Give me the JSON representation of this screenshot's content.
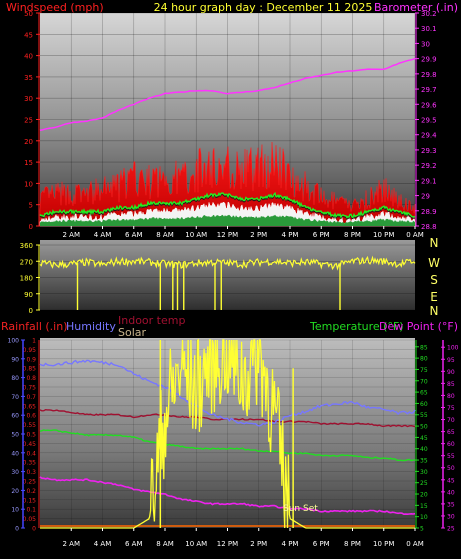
{
  "header": {
    "wind_label": "Windspeed (mph)",
    "title": "24 hour graph day : December 11 2025",
    "baro_label": "Barometer (.in)"
  },
  "colors": {
    "wind": "#ff1010",
    "gust": "#ffffff",
    "baro": "#ff33ff",
    "winddir": "#ffff33",
    "rain": "#3333ff",
    "humidity": "#7777ff",
    "indoor": "#a01030",
    "solar": "#c8b48c",
    "temp": "#22dd22",
    "dew": "#ee22ee",
    "rainscale": "#ee2222",
    "rainline": "#ff6600"
  },
  "chart_data": [
    {
      "type": "area",
      "name": "wind-barometer",
      "x_ticks": [
        "2 AM",
        "4 AM",
        "6 AM",
        "8 AM",
        "10 AM",
        "12 PM",
        "2 PM",
        "4 PM",
        "6 PM",
        "8 PM",
        "10 PM",
        "0 AM"
      ],
      "y_left_ticks": [
        "0",
        "5",
        "10",
        "15",
        "20",
        "25",
        "30",
        "35",
        "40",
        "45",
        "50"
      ],
      "y_left_range": [
        0,
        50
      ],
      "y_right_ticks": [
        "28.8",
        "28.9",
        "29",
        "29.1",
        "29.2",
        "29.3",
        "29.4",
        "29.5",
        "29.6",
        "29.7",
        "29.8",
        "29.9",
        "30",
        "30.1",
        "30.2"
      ],
      "y_right_range": [
        28.8,
        30.2
      ],
      "hours": [
        0,
        1,
        2,
        3,
        4,
        5,
        6,
        7,
        8,
        9,
        10,
        11,
        12,
        13,
        14,
        15,
        16,
        17,
        18,
        19,
        20,
        21,
        22,
        23,
        24
      ],
      "windspeed_peak": [
        7,
        8,
        8,
        8,
        9,
        10,
        12,
        11,
        12,
        12,
        14,
        15,
        15,
        14,
        15,
        16,
        13,
        10,
        7,
        6,
        5,
        7,
        9,
        7,
        4
      ],
      "windspeed_avg": [
        2,
        3,
        3,
        3,
        3,
        4,
        4,
        5,
        5,
        5,
        6,
        7,
        7,
        6,
        6,
        7,
        6,
        4,
        3,
        2,
        2,
        3,
        4,
        3,
        2
      ],
      "barometer": [
        29.43,
        29.45,
        29.48,
        29.49,
        29.51,
        29.56,
        29.6,
        29.64,
        29.67,
        29.68,
        29.69,
        29.69,
        29.67,
        29.68,
        29.69,
        29.71,
        29.74,
        29.77,
        29.79,
        29.81,
        29.82,
        29.83,
        29.83,
        29.87,
        29.9
      ]
    },
    {
      "type": "line",
      "name": "wind-direction",
      "y_ticks": [
        "0",
        "90",
        "180",
        "270",
        "360"
      ],
      "y_range": [
        0,
        360
      ],
      "compass_labels": [
        "N",
        "W",
        "S",
        "E",
        "N"
      ],
      "hours": [
        0,
        1,
        2,
        3,
        4,
        5,
        6,
        7,
        8,
        9,
        10,
        11,
        12,
        13,
        14,
        15,
        16,
        17,
        18,
        19,
        20,
        21,
        22,
        23,
        24
      ],
      "direction": [
        260,
        250,
        255,
        265,
        250,
        270,
        270,
        265,
        255,
        250,
        260,
        265,
        260,
        255,
        265,
        270,
        260,
        265,
        255,
        245,
        270,
        275,
        270,
        255,
        270
      ]
    },
    {
      "type": "line",
      "name": "rain-humidity-temperature",
      "legend": {
        "rainfall": "Rainfall (.in)",
        "humidity": "Humidity",
        "indoor": "Indoor temp",
        "solar": "Solar",
        "temperature": "Temperature (°F)",
        "dewpoint": "Dew Point (°F)"
      },
      "annotation": "Sun Set",
      "x_ticks": [
        "2 AM",
        "4 AM",
        "6 AM",
        "8 AM",
        "10 AM",
        "12 PM",
        "2 PM",
        "4 PM",
        "6 PM",
        "8 PM",
        "10 PM",
        "0 AM"
      ],
      "rain_ticks": [
        "0",
        "0.05",
        "0.1",
        "0.15",
        "0.2",
        "0.25",
        "0.3",
        "0.35",
        "0.4",
        "0.45",
        "0.5",
        "0.55",
        "0.6",
        "0.65",
        "0.7",
        "0.75",
        "0.8",
        "0.85",
        "0.9",
        "0.95",
        "1"
      ],
      "rain_range": [
        0,
        1
      ],
      "humidity_ticks": [
        "0",
        "10",
        "20",
        "30",
        "40",
        "50",
        "60",
        "70",
        "80",
        "90",
        "100"
      ],
      "humidity_range": [
        0,
        100
      ],
      "temp_ticks": [
        "5",
        "10",
        "15",
        "20",
        "25",
        "30",
        "35",
        "40",
        "45",
        "50",
        "55",
        "60",
        "65",
        "70",
        "75",
        "80",
        "85"
      ],
      "temp_range": [
        5,
        88
      ],
      "dew_ticks": [
        "25",
        "30",
        "35",
        "40",
        "45",
        "50",
        "55",
        "60",
        "65",
        "70",
        "75",
        "80",
        "85",
        "90",
        "95",
        "100"
      ],
      "dew_range": [
        25,
        103
      ],
      "hours": [
        0,
        1,
        2,
        3,
        4,
        5,
        6,
        7,
        8,
        9,
        10,
        11,
        12,
        13,
        14,
        15,
        16,
        17,
        18,
        19,
        20,
        21,
        22,
        23,
        24
      ],
      "humidity": [
        87,
        87,
        88,
        89,
        88,
        87,
        82,
        78,
        75,
        70,
        65,
        60,
        58,
        56,
        55,
        56,
        60,
        62,
        65,
        66,
        67,
        64,
        63,
        61,
        62
      ],
      "indoor_temp": [
        57,
        57,
        56,
        55,
        55,
        55,
        54,
        55,
        55,
        54,
        54,
        53,
        53,
        53,
        53,
        52,
        52,
        52,
        51,
        51,
        51,
        51,
        50,
        50,
        50
      ],
      "temperature": [
        48,
        48,
        47,
        46,
        46,
        46,
        45,
        43,
        42,
        41,
        40,
        40,
        40,
        40,
        39,
        39,
        38,
        38,
        37,
        37,
        37,
        36,
        36,
        35,
        35
      ],
      "dew_point": [
        46,
        45,
        45,
        45,
        44,
        43,
        41,
        40,
        39,
        37,
        36,
        35,
        35,
        35,
        34,
        34,
        33,
        33,
        32,
        32,
        32,
        32,
        32,
        31,
        31
      ],
      "rainfall": [
        0,
        0,
        0,
        0,
        0,
        0,
        0,
        0,
        0,
        0,
        0,
        0,
        0,
        0,
        0,
        0,
        0,
        0,
        0,
        0,
        0,
        0,
        0,
        0,
        0
      ],
      "solar": [
        0,
        0,
        0,
        0,
        0,
        0,
        0,
        5,
        60,
        85,
        75,
        90,
        95,
        80,
        95,
        60,
        5,
        0,
        0,
        0,
        0,
        0,
        0,
        0,
        0
      ]
    }
  ]
}
